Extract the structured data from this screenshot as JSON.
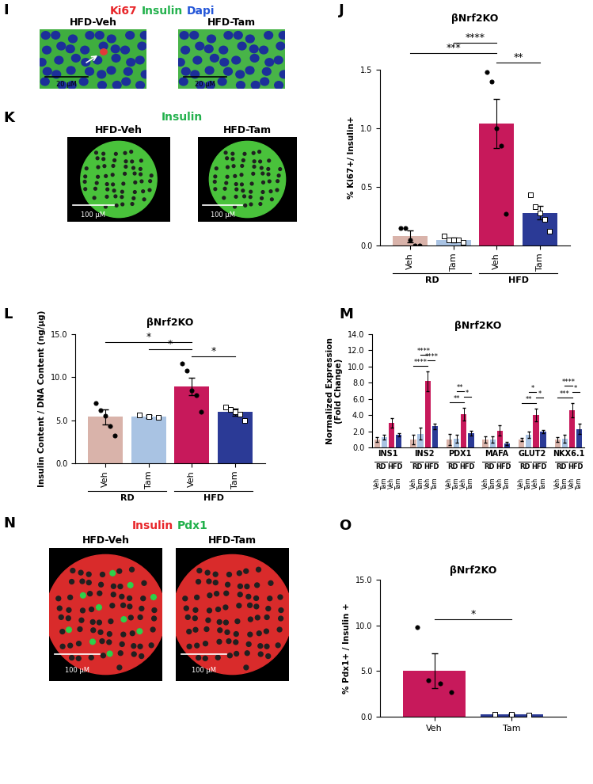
{
  "panels": [
    {
      "letter": "I",
      "title": [
        {
          "text": "Ki67",
          "color": "#e8262a"
        },
        {
          "text": "Insulin",
          "color": "#22b14c"
        },
        {
          "text": "Dapi",
          "color": "#2456d8"
        }
      ],
      "images": [
        "HFD-Veh",
        "HFD-Tam"
      ],
      "scale_bar": "20 µM"
    },
    {
      "letter": "K",
      "title": [
        {
          "text": "Insulin",
          "color": "#22b14c"
        }
      ],
      "images": [
        "HFD-Veh",
        "HFD-Tam"
      ],
      "scale_bar": "100 µM"
    },
    {
      "letter": "N",
      "title": [
        {
          "text": "Insulin",
          "color": "#e8262a"
        },
        {
          "text": "Pdx1",
          "color": "#22b14c"
        }
      ],
      "images": [
        "HFD-Veh",
        "HFD-Tam"
      ],
      "scale_bar": "100 µM"
    }
  ],
  "chart_data": [
    {
      "panel": "J",
      "type": "bar",
      "title": "βNrf2KO",
      "y_label": "% Ki67+/ Insulin+",
      "categories": [
        "Veh",
        "Tam",
        "Veh",
        "Tam"
      ],
      "groups": [
        "RD",
        "HFD"
      ],
      "colors": [
        "#d9b3aa",
        "#a9c3e3",
        "#c7195b",
        "#2b3a96"
      ],
      "values": [
        0.08,
        0.05,
        1.04,
        0.28
      ],
      "errors": [
        0.05,
        0.02,
        0.21,
        0.06
      ],
      "points": [
        [
          0.15,
          0.15,
          0.05,
          0.0,
          0.0
        ],
        [
          0.08,
          0.05,
          0.05,
          0.05,
          0.03
        ],
        [
          1.48,
          1.4,
          1.0,
          0.85,
          0.27
        ],
        [
          0.43,
          0.33,
          0.28,
          0.22,
          0.12
        ]
      ],
      "significance": [
        {
          "from": 2,
          "to": 3,
          "text": "**"
        },
        {
          "from": 0,
          "to": 2,
          "text": "***"
        },
        {
          "from": 1,
          "to": 2,
          "text": "****"
        }
      ],
      "ylim": [
        0,
        1.5
      ],
      "yticks": [
        {
          "value": 0,
          "label": "0.0"
        },
        {
          "value": 0.5,
          "label": "0.5"
        },
        {
          "value": 1.0,
          "label": "1.0"
        },
        {
          "value": 1.5,
          "label": "1.5"
        }
      ]
    },
    {
      "panel": "L",
      "type": "bar",
      "title": "βNrf2KO",
      "y_label": "Insulin Content / DNA Content (ng/µg)",
      "categories": [
        "Veh",
        "Tam",
        "Veh",
        "Tam"
      ],
      "groups": [
        "RD",
        "HFD"
      ],
      "colors": [
        "#d9b3aa",
        "#a9c3e3",
        "#c7195b",
        "#2b3a96"
      ],
      "values": [
        5.4,
        5.45,
        8.95,
        5.95
      ],
      "errors": [
        0.9,
        0.2,
        1.0,
        0.4
      ],
      "points": [
        [
          7.0,
          6.2,
          5.5,
          4.3,
          3.2
        ],
        [
          5.6,
          5.4,
          5.3
        ],
        [
          11.6,
          10.8,
          8.5,
          7.9,
          6.0
        ],
        [
          6.5,
          6.3,
          6.0,
          5.7,
          5.0
        ]
      ],
      "significance": [
        {
          "from": 2,
          "to": 3,
          "text": "*"
        },
        {
          "from": 1,
          "to": 2,
          "text": "*"
        },
        {
          "from": 0,
          "to": 2,
          "text": "*"
        }
      ],
      "ylim": [
        0,
        15
      ],
      "yticks": [
        {
          "value": 0,
          "label": "0.0"
        },
        {
          "value": 5,
          "label": "5.0"
        },
        {
          "value": 10,
          "label": "10.0"
        },
        {
          "value": 15,
          "label": "15.0"
        }
      ]
    },
    {
      "panel": "M",
      "type": "bar",
      "title": "βNrf2KO",
      "y_label": "Normalized Expression\n(Fold Change)",
      "categories": [
        "INS1",
        "INS2",
        "PDX1",
        "MAFA",
        "GLUT2",
        "NKX6.1"
      ],
      "groups": [
        "RD",
        "HFD"
      ],
      "sub_categories": [
        "Veh",
        "Tam",
        "Veh",
        "Tam"
      ],
      "colors": [
        "#d9b3aa",
        "#a9c3e3",
        "#c7195b",
        "#2b3a96"
      ],
      "values": [
        [
          1.0,
          1.3,
          3.0,
          1.6
        ],
        [
          1.0,
          1.7,
          8.2,
          2.6
        ],
        [
          1.0,
          1.1,
          4.1,
          1.8
        ],
        [
          1.0,
          1.0,
          2.1,
          0.5
        ],
        [
          1.0,
          1.6,
          4.0,
          2.0
        ],
        [
          1.0,
          1.1,
          4.6,
          2.3
        ]
      ],
      "errors": [
        [
          0.3,
          0.3,
          0.6,
          0.2
        ],
        [
          0.6,
          0.7,
          1.2,
          0.3
        ],
        [
          0.7,
          0.5,
          0.8,
          0.3
        ],
        [
          0.4,
          0.4,
          0.6,
          0.2
        ],
        [
          0.2,
          0.4,
          0.8,
          0.2
        ],
        [
          0.3,
          0.5,
          0.9,
          0.6
        ]
      ],
      "significance": [
        {
          "category": "INS2",
          "from": 0,
          "to": 2,
          "text": "****"
        },
        {
          "category": "INS2",
          "from": 2,
          "to": 3,
          "text": "****"
        },
        {
          "category": "INS2",
          "from": 1,
          "to": 2,
          "text": "****"
        },
        {
          "category": "PDX1",
          "from": 0,
          "to": 2,
          "text": "**"
        },
        {
          "category": "PDX1",
          "from": 2,
          "to": 3,
          "text": "*"
        },
        {
          "category": "PDX1",
          "from": 1,
          "to": 2,
          "text": "**"
        },
        {
          "category": "GLUT2",
          "from": 0,
          "to": 2,
          "text": "**"
        },
        {
          "category": "GLUT2",
          "from": 2,
          "to": 3,
          "text": "*"
        },
        {
          "category": "GLUT2",
          "from": 1,
          "to": 2,
          "text": "*"
        },
        {
          "category": "NKX6.1",
          "from": 0,
          "to": 2,
          "text": "***"
        },
        {
          "category": "NKX6.1",
          "from": 2,
          "to": 3,
          "text": "*"
        },
        {
          "category": "NKX6.1",
          "from": 1,
          "to": 2,
          "text": "****"
        }
      ],
      "ylim": [
        0,
        14
      ],
      "yticks": [
        {
          "value": 0,
          "label": "0.0"
        },
        {
          "value": 2,
          "label": "2.0"
        },
        {
          "value": 4,
          "label": "4.0"
        },
        {
          "value": 6,
          "label": "6.0"
        },
        {
          "value": 8,
          "label": "8.0"
        },
        {
          "value": 10,
          "label": "10.0"
        },
        {
          "value": 12,
          "label": "12.0"
        },
        {
          "value": 14,
          "label": "14.0"
        }
      ]
    },
    {
      "panel": "O",
      "type": "bar",
      "title": "βNrf2KO",
      "y_label": "% Pdx1+ / Insulin +",
      "categories": [
        "Veh",
        "Tam"
      ],
      "colors": [
        "#c7195b",
        "#2b3a96"
      ],
      "values": [
        5.0,
        0.25
      ],
      "errors": [
        1.9,
        0.1
      ],
      "points": [
        [
          9.8,
          4.0,
          3.6,
          2.7
        ],
        [
          0.3,
          0.25,
          0.2
        ]
      ],
      "significance": [
        {
          "from": 0,
          "to": 1,
          "text": "*"
        }
      ],
      "ylim": [
        0,
        15
      ],
      "yticks": [
        {
          "value": 0,
          "label": "0.0"
        },
        {
          "value": 5,
          "label": "5.0"
        },
        {
          "value": 10,
          "label": "10.0"
        },
        {
          "value": 15,
          "label": "15.0"
        }
      ]
    }
  ]
}
